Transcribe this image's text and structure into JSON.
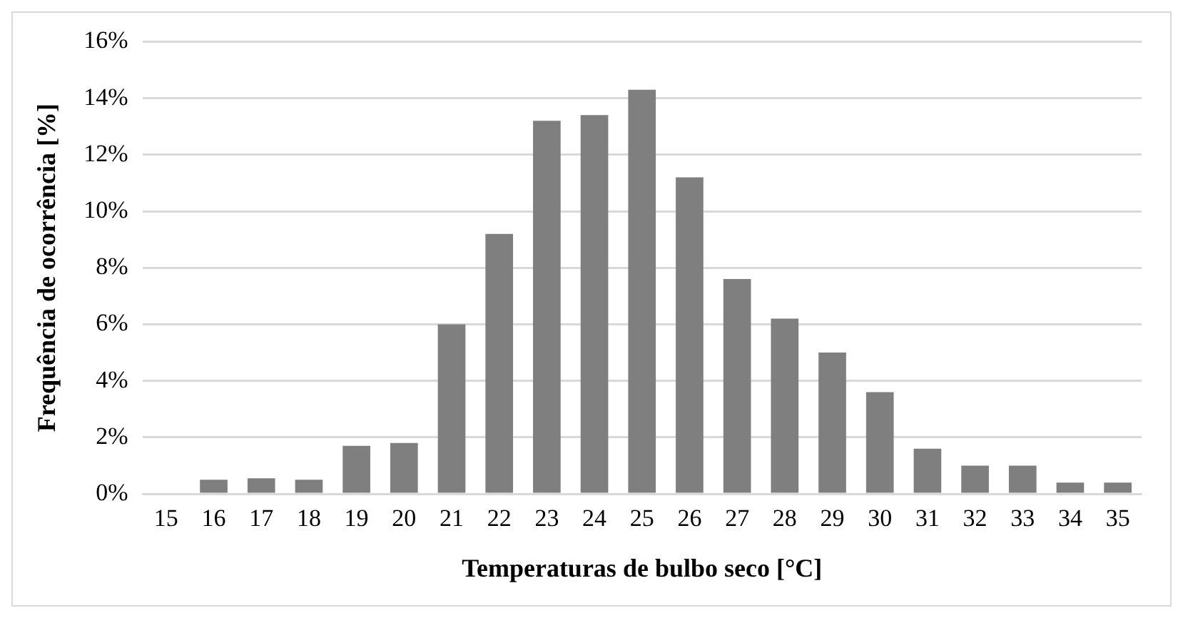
{
  "chart_data": {
    "type": "bar",
    "xlabel": "Temperaturas de bulbo seco [°C]",
    "ylabel": "Frequência de ocorrência [%]",
    "categories": [
      "15",
      "16",
      "17",
      "18",
      "19",
      "20",
      "21",
      "22",
      "23",
      "24",
      "25",
      "26",
      "27",
      "28",
      "29",
      "30",
      "31",
      "32",
      "33",
      "34",
      "35"
    ],
    "values": [
      0,
      0.5,
      0.55,
      0.5,
      1.7,
      1.8,
      6.0,
      9.2,
      13.2,
      13.4,
      14.3,
      11.2,
      7.6,
      6.2,
      5.0,
      3.6,
      1.6,
      1.0,
      1.0,
      0.4,
      0.4
    ],
    "color": "#7f7f7f",
    "ylim": [
      0,
      16
    ],
    "yticks": [
      {
        "value": 0,
        "label": "0%"
      },
      {
        "value": 2,
        "label": "2%"
      },
      {
        "value": 4,
        "label": "4%"
      },
      {
        "value": 6,
        "label": "6%"
      },
      {
        "value": 8,
        "label": "8%"
      },
      {
        "value": 10,
        "label": "10%"
      },
      {
        "value": 12,
        "label": "12%"
      },
      {
        "value": 14,
        "label": "14%"
      },
      {
        "value": 16,
        "label": "16%"
      }
    ],
    "grid": "y",
    "legend": false
  }
}
